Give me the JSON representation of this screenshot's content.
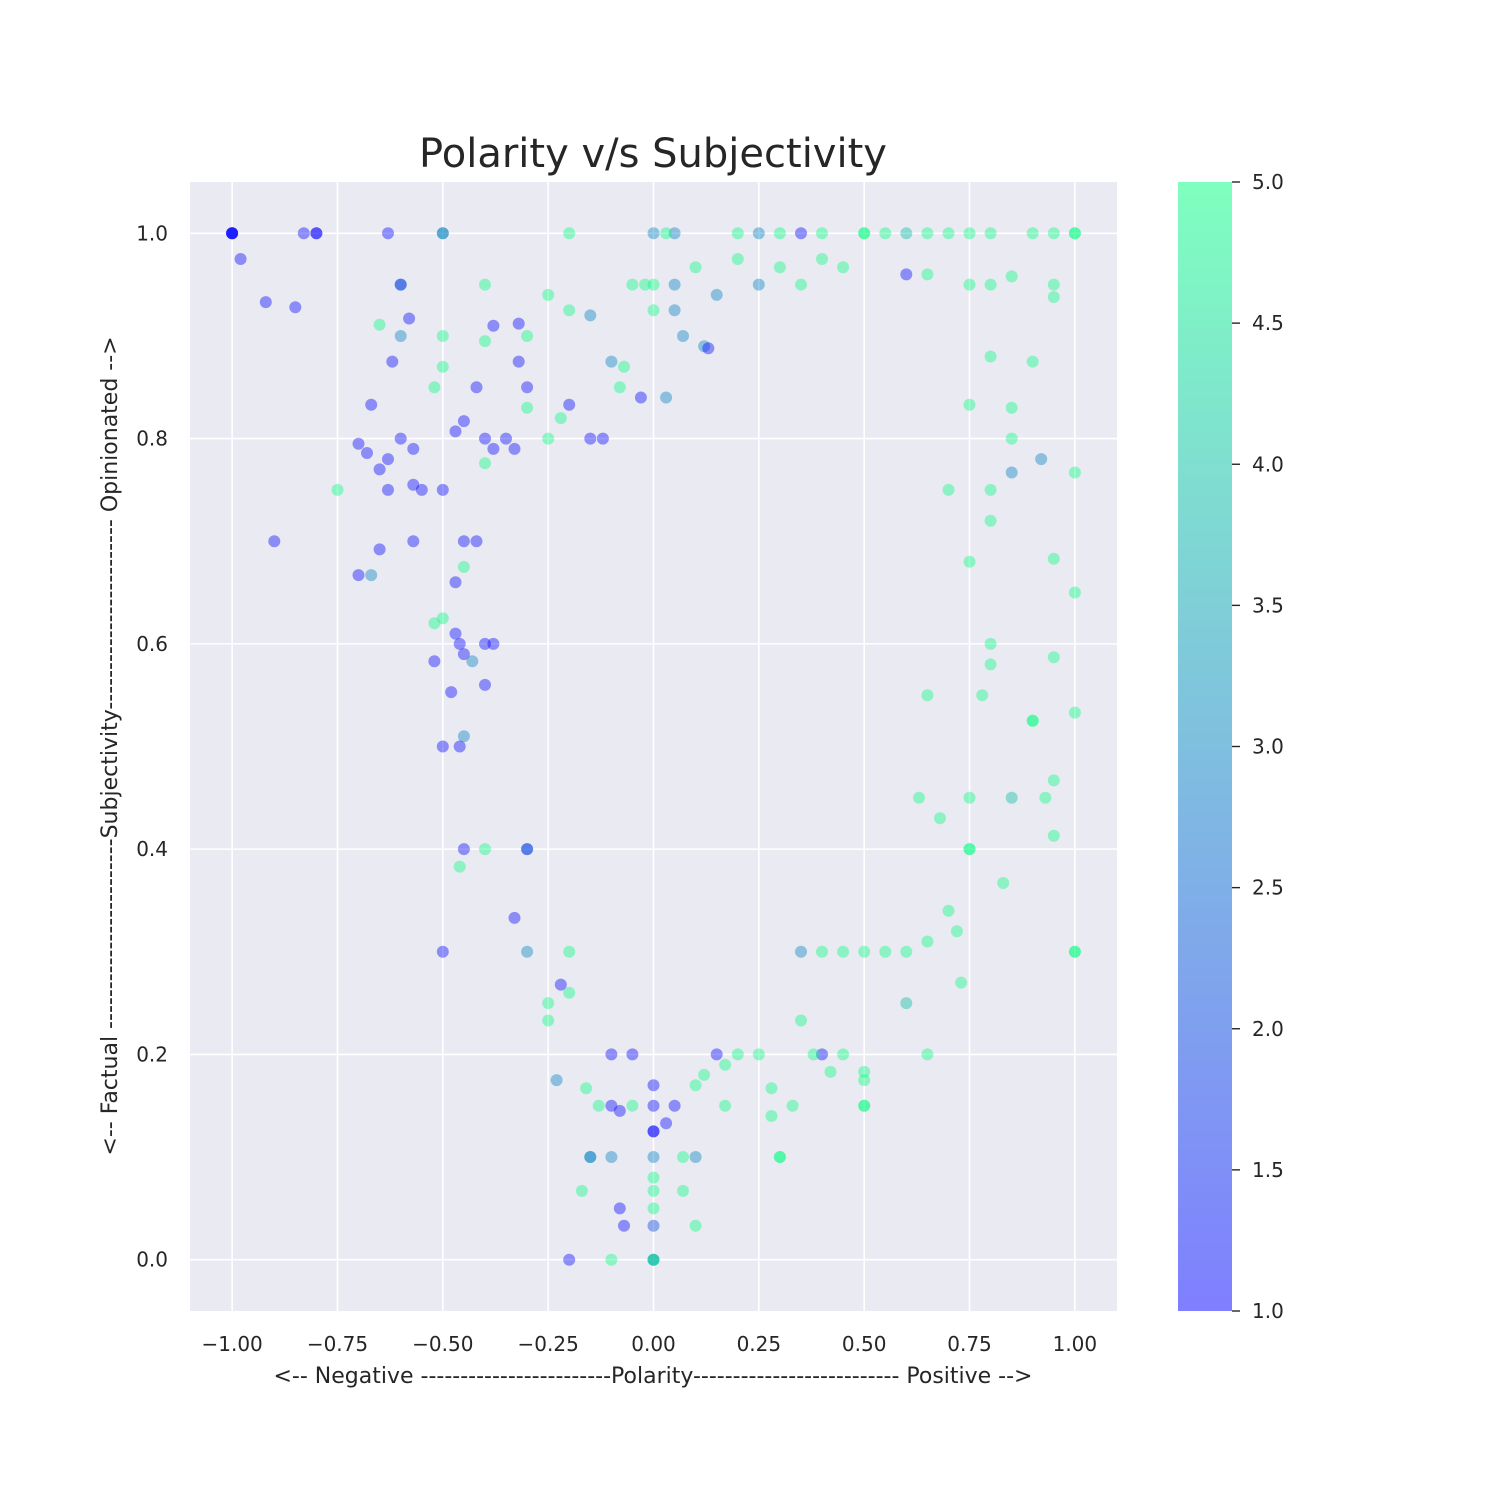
{
  "chart_data": {
    "type": "scatter",
    "title": "Polarity v/s Subjectivity",
    "xlabel": "<-- Negative ------------------------Polarity-------------------------- Positive -->",
    "ylabel": "<-- Factual ------------------------Subjectivity------------------------ Opinionated -->",
    "xlim": [
      -1.1,
      1.1
    ],
    "ylim": [
      -0.05,
      1.05
    ],
    "x_ticks": [
      -1.0,
      -0.75,
      -0.5,
      -0.25,
      0.0,
      0.25,
      0.5,
      0.75,
      1.0
    ],
    "x_tick_labels": [
      "−1.00",
      "−0.75",
      "−0.50",
      "−0.25",
      "0.00",
      "0.25",
      "0.50",
      "0.75",
      "1.00"
    ],
    "y_ticks": [
      0.0,
      0.2,
      0.4,
      0.6,
      0.8,
      1.0
    ],
    "y_tick_labels": [
      "0.0",
      "0.2",
      "0.4",
      "0.6",
      "0.8",
      "1.0"
    ],
    "grid": true,
    "colormap": {
      "name": "winter",
      "low_color": "#0000ff",
      "high_color": "#00ff80",
      "range": [
        1.0,
        5.0
      ],
      "ticks": [
        1.0,
        1.5,
        2.0,
        2.5,
        3.0,
        3.5,
        4.0,
        4.5,
        5.0
      ],
      "tick_labels": [
        "1.0",
        "1.5",
        "2.0",
        "2.5",
        "3.0",
        "3.5",
        "4.0",
        "4.5",
        "5.0"
      ]
    },
    "marker_alpha": 0.4,
    "points": [
      [
        -1.0,
        1.0,
        1
      ],
      [
        -1.0,
        1.0,
        1
      ],
      [
        -1.0,
        1.0,
        1
      ],
      [
        -1.0,
        1.0,
        1
      ],
      [
        -0.98,
        0.975,
        1
      ],
      [
        -0.92,
        0.933,
        1
      ],
      [
        -0.85,
        0.928,
        1
      ],
      [
        -0.83,
        1.0,
        1
      ],
      [
        -0.8,
        1.0,
        1
      ],
      [
        -0.8,
        1.0,
        1
      ],
      [
        -0.63,
        1.0,
        1
      ],
      [
        -0.5,
        1.0,
        3
      ],
      [
        -0.5,
        1.0,
        3
      ],
      [
        -0.6,
        0.95,
        2
      ],
      [
        -0.6,
        0.95,
        2
      ],
      [
        -0.58,
        0.917,
        1
      ],
      [
        -0.6,
        0.9,
        3
      ],
      [
        -0.65,
        0.911,
        5
      ],
      [
        -0.62,
        0.875,
        1
      ],
      [
        -0.67,
        0.833,
        1
      ],
      [
        -0.5,
        0.9,
        5
      ],
      [
        -0.4,
        0.95,
        5
      ],
      [
        -0.38,
        0.91,
        1
      ],
      [
        -0.32,
        0.912,
        1
      ],
      [
        -0.3,
        0.9,
        5
      ],
      [
        -0.7,
        0.795,
        1
      ],
      [
        -0.68,
        0.786,
        1
      ],
      [
        -0.65,
        0.77,
        1
      ],
      [
        -0.63,
        0.78,
        1
      ],
      [
        -0.6,
        0.8,
        1
      ],
      [
        -0.57,
        0.79,
        1
      ],
      [
        -0.55,
        0.75,
        1
      ],
      [
        -0.57,
        0.755,
        1
      ],
      [
        -0.63,
        0.75,
        1
      ],
      [
        -0.75,
        0.75,
        5
      ],
      [
        -0.9,
        0.7,
        1
      ],
      [
        -0.57,
        0.7,
        1
      ],
      [
        -0.65,
        0.692,
        1
      ],
      [
        -0.7,
        0.667,
        1
      ],
      [
        -0.67,
        0.667,
        3
      ],
      [
        -0.5,
        0.75,
        1
      ],
      [
        -0.47,
        0.807,
        1
      ],
      [
        -0.45,
        0.817,
        1
      ],
      [
        -0.42,
        0.85,
        1
      ],
      [
        -0.4,
        0.8,
        1
      ],
      [
        -0.38,
        0.79,
        1
      ],
      [
        -0.35,
        0.8,
        1
      ],
      [
        -0.33,
        0.79,
        1
      ],
      [
        -0.3,
        0.85,
        1
      ],
      [
        -0.3,
        0.83,
        5
      ],
      [
        -0.32,
        0.875,
        1
      ],
      [
        -0.4,
        0.895,
        5
      ],
      [
        -0.52,
        0.85,
        5
      ],
      [
        -0.5,
        0.87,
        5
      ],
      [
        -0.4,
        0.776,
        5
      ],
      [
        -0.45,
        0.7,
        1
      ],
      [
        -0.47,
        0.66,
        1
      ],
      [
        -0.45,
        0.675,
        5
      ],
      [
        -0.42,
        0.7,
        1
      ],
      [
        -0.5,
        0.625,
        5
      ],
      [
        -0.52,
        0.62,
        5
      ],
      [
        -0.47,
        0.61,
        1
      ],
      [
        -0.46,
        0.6,
        1
      ],
      [
        -0.4,
        0.6,
        1
      ],
      [
        -0.38,
        0.6,
        1
      ],
      [
        -0.52,
        0.583,
        1
      ],
      [
        -0.45,
        0.59,
        1
      ],
      [
        -0.43,
        0.583,
        3
      ],
      [
        -0.4,
        0.56,
        1
      ],
      [
        -0.48,
        0.553,
        1
      ],
      [
        -0.5,
        0.5,
        1
      ],
      [
        -0.45,
        0.51,
        3
      ],
      [
        -0.46,
        0.5,
        1
      ],
      [
        -0.4,
        0.4,
        5
      ],
      [
        -0.45,
        0.4,
        1
      ],
      [
        -0.46,
        0.383,
        5
      ],
      [
        -0.5,
        0.3,
        1
      ],
      [
        -0.3,
        0.4,
        2
      ],
      [
        -0.3,
        0.4,
        2
      ],
      [
        -0.33,
        0.333,
        1
      ],
      [
        -0.3,
        0.3,
        3
      ],
      [
        -0.2,
        0.3,
        5
      ],
      [
        -0.22,
        0.268,
        1
      ],
      [
        -0.25,
        0.25,
        5
      ],
      [
        -0.25,
        0.233,
        5
      ],
      [
        -0.2,
        0.26,
        5
      ],
      [
        -0.23,
        0.175,
        3
      ],
      [
        -0.16,
        0.167,
        5
      ],
      [
        -0.15,
        0.1,
        3
      ],
      [
        -0.15,
        0.1,
        3
      ],
      [
        -0.17,
        0.067,
        5
      ],
      [
        -0.1,
        0.1,
        3
      ],
      [
        -0.2,
        0.0,
        1
      ],
      [
        -0.1,
        0.0,
        5
      ],
      [
        -0.08,
        0.05,
        1
      ],
      [
        -0.07,
        0.033,
        1
      ],
      [
        0.0,
        0.0,
        4
      ],
      [
        0.0,
        0.0,
        4
      ],
      [
        0.0,
        0.0,
        4
      ],
      [
        0.0,
        0.033,
        2
      ],
      [
        0.0,
        0.05,
        5
      ],
      [
        0.0,
        0.067,
        5
      ],
      [
        0.0,
        0.08,
        5
      ],
      [
        0.0,
        0.1,
        3
      ],
      [
        0.0,
        0.125,
        1
      ],
      [
        0.0,
        0.125,
        1
      ],
      [
        0.03,
        0.133,
        1
      ],
      [
        0.07,
        0.067,
        5
      ],
      [
        0.07,
        0.1,
        5
      ],
      [
        0.1,
        0.1,
        3
      ],
      [
        0.1,
        0.033,
        5
      ],
      [
        0.0,
        0.15,
        1
      ],
      [
        -0.05,
        0.15,
        5
      ],
      [
        -0.1,
        0.15,
        1
      ],
      [
        -0.08,
        0.145,
        1
      ],
      [
        -0.13,
        0.15,
        5
      ],
      [
        -0.1,
        0.2,
        1
      ],
      [
        -0.05,
        0.2,
        1
      ],
      [
        0.0,
        0.17,
        1
      ],
      [
        0.05,
        0.15,
        1
      ],
      [
        0.0,
        1.0,
        3
      ],
      [
        0.05,
        1.0,
        3
      ],
      [
        0.03,
        1.0,
        5
      ],
      [
        0.2,
        1.0,
        5
      ],
      [
        0.25,
        1.0,
        3
      ],
      [
        0.3,
        1.0,
        5
      ],
      [
        0.35,
        1.0,
        1
      ],
      [
        0.4,
        1.0,
        5
      ],
      [
        0.5,
        1.0,
        5
      ],
      [
        0.5,
        1.0,
        5
      ],
      [
        0.55,
        1.0,
        5
      ],
      [
        0.6,
        1.0,
        4
      ],
      [
        0.65,
        1.0,
        5
      ],
      [
        0.7,
        1.0,
        5
      ],
      [
        0.75,
        1.0,
        5
      ],
      [
        0.8,
        1.0,
        5
      ],
      [
        0.9,
        1.0,
        5
      ],
      [
        0.95,
        1.0,
        5
      ],
      [
        1.0,
        1.0,
        5
      ],
      [
        1.0,
        1.0,
        5
      ],
      [
        -0.2,
        1.0,
        5
      ],
      [
        0.6,
        0.96,
        1
      ],
      [
        0.65,
        0.96,
        5
      ],
      [
        0.75,
        0.95,
        5
      ],
      [
        0.8,
        0.95,
        5
      ],
      [
        0.85,
        0.958,
        5
      ],
      [
        0.95,
        0.95,
        5
      ],
      [
        0.95,
        0.938,
        5
      ],
      [
        1.0,
        0.767,
        5
      ],
      [
        1.0,
        0.65,
        5
      ],
      [
        1.0,
        0.533,
        5
      ],
      [
        1.0,
        0.3,
        5
      ],
      [
        1.0,
        0.3,
        5
      ],
      [
        0.95,
        0.683,
        5
      ],
      [
        0.95,
        0.587,
        5
      ],
      [
        0.95,
        0.467,
        5
      ],
      [
        0.95,
        0.413,
        5
      ],
      [
        0.93,
        0.45,
        5
      ],
      [
        0.92,
        0.78,
        3
      ],
      [
        0.9,
        0.875,
        5
      ],
      [
        0.9,
        0.525,
        5
      ],
      [
        0.9,
        0.525,
        5
      ],
      [
        0.85,
        0.767,
        3
      ],
      [
        0.85,
        0.45,
        4
      ],
      [
        0.83,
        0.367,
        5
      ],
      [
        0.8,
        0.6,
        5
      ],
      [
        0.8,
        0.58,
        5
      ],
      [
        0.78,
        0.55,
        5
      ],
      [
        0.75,
        0.45,
        5
      ],
      [
        0.75,
        0.4,
        5
      ],
      [
        0.75,
        0.4,
        5
      ],
      [
        0.73,
        0.27,
        5
      ],
      [
        0.65,
        0.2,
        5
      ],
      [
        0.6,
        0.25,
        4
      ],
      [
        0.5,
        0.15,
        5
      ],
      [
        0.5,
        0.15,
        5
      ],
      [
        0.5,
        0.175,
        5
      ],
      [
        0.5,
        0.183,
        5
      ],
      [
        0.45,
        0.2,
        5
      ],
      [
        0.42,
        0.183,
        5
      ],
      [
        0.4,
        0.2,
        1
      ],
      [
        0.38,
        0.2,
        5
      ],
      [
        0.35,
        0.233,
        5
      ],
      [
        0.33,
        0.15,
        5
      ],
      [
        0.3,
        0.1,
        5
      ],
      [
        0.3,
        0.1,
        5
      ],
      [
        0.28,
        0.14,
        5
      ],
      [
        0.28,
        0.167,
        5
      ],
      [
        0.25,
        0.2,
        5
      ],
      [
        0.2,
        0.2,
        5
      ],
      [
        0.17,
        0.19,
        5
      ],
      [
        0.15,
        0.2,
        1
      ],
      [
        0.12,
        0.18,
        5
      ],
      [
        0.1,
        0.17,
        5
      ],
      [
        0.17,
        0.15,
        5
      ],
      [
        0.5,
        0.3,
        5
      ],
      [
        0.55,
        0.3,
        5
      ],
      [
        0.6,
        0.3,
        5
      ],
      [
        0.65,
        0.31,
        5
      ],
      [
        0.45,
        0.3,
        5
      ],
      [
        0.4,
        0.3,
        5
      ],
      [
        0.35,
        0.3,
        3
      ],
      [
        0.7,
        0.34,
        5
      ],
      [
        0.72,
        0.32,
        5
      ],
      [
        0.68,
        0.43,
        5
      ],
      [
        0.63,
        0.45,
        5
      ],
      [
        0.65,
        0.55,
        5
      ],
      [
        0.85,
        0.8,
        5
      ],
      [
        0.85,
        0.83,
        5
      ],
      [
        0.8,
        0.75,
        5
      ],
      [
        0.8,
        0.72,
        5
      ],
      [
        0.75,
        0.68,
        5
      ],
      [
        0.8,
        0.88,
        5
      ],
      [
        0.75,
        0.833,
        5
      ],
      [
        0.7,
        0.75,
        5
      ],
      [
        0.3,
        0.967,
        5
      ],
      [
        0.35,
        0.95,
        5
      ],
      [
        0.4,
        0.975,
        5
      ],
      [
        0.45,
        0.967,
        5
      ],
      [
        0.2,
        0.975,
        5
      ],
      [
        0.1,
        0.967,
        5
      ],
      [
        0.15,
        0.94,
        3
      ],
      [
        0.25,
        0.95,
        3
      ],
      [
        0.05,
        0.95,
        3
      ],
      [
        0.05,
        0.925,
        3
      ],
      [
        -0.05,
        0.95,
        5
      ],
      [
        -0.02,
        0.95,
        5
      ],
      [
        0.0,
        0.925,
        5
      ],
      [
        0.0,
        0.95,
        5
      ],
      [
        0.07,
        0.9,
        3
      ],
      [
        -0.07,
        0.87,
        5
      ],
      [
        -0.1,
        0.875,
        3
      ],
      [
        -0.15,
        0.92,
        3
      ],
      [
        -0.2,
        0.925,
        5
      ],
      [
        -0.25,
        0.94,
        5
      ],
      [
        -0.08,
        0.85,
        5
      ],
      [
        -0.03,
        0.84,
        1
      ],
      [
        0.03,
        0.84,
        3
      ],
      [
        0.12,
        0.89,
        3
      ],
      [
        0.13,
        0.888,
        1
      ],
      [
        -0.2,
        0.833,
        1
      ],
      [
        -0.22,
        0.82,
        5
      ],
      [
        -0.25,
        0.8,
        5
      ],
      [
        -0.12,
        0.8,
        1
      ],
      [
        -0.15,
        0.8,
        1
      ]
    ]
  }
}
